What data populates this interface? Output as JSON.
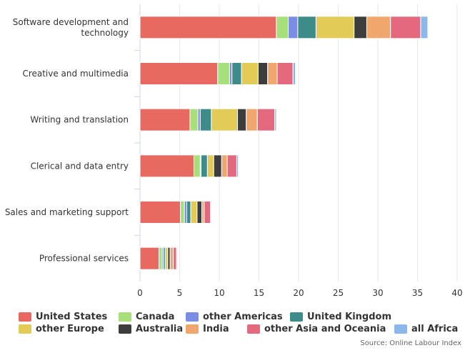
{
  "chart_data": {
    "type": "bar",
    "orientation": "horizontal",
    "stacked": true,
    "categories": [
      [
        "Software development and",
        "technology"
      ],
      [
        "Creative and multimedia"
      ],
      [
        "Writing and translation"
      ],
      [
        "Clerical and data entry"
      ],
      [
        "Sales and marketing support"
      ],
      [
        "Professional services"
      ]
    ],
    "x_ticks": [
      "0",
      "5",
      "10",
      "15",
      "20",
      "25",
      "30",
      "35",
      "40"
    ],
    "xlim": [
      0,
      40
    ],
    "grid": "vertical",
    "legend_position": "bottom",
    "series": [
      {
        "name": "United States",
        "color": "#e8695f",
        "values": [
          17.2,
          9.8,
          6.3,
          6.8,
          5.1,
          2.4
        ]
      },
      {
        "name": "Canada",
        "color": "#a7e07a",
        "values": [
          1.5,
          1.5,
          1.0,
          0.8,
          0.5,
          0.4
        ]
      },
      {
        "name": "other Americas",
        "color": "#7b8ee6",
        "values": [
          1.2,
          0.3,
          0.3,
          0.1,
          0.3,
          0.2
        ]
      },
      {
        "name": "United Kingdom",
        "color": "#3e8c8a",
        "values": [
          2.3,
          1.2,
          1.4,
          0.8,
          0.5,
          0.2
        ]
      },
      {
        "name": "other Europe",
        "color": "#e2cc57",
        "values": [
          4.8,
          2.1,
          3.3,
          0.8,
          0.8,
          0.3
        ]
      },
      {
        "name": "Australia",
        "color": "#3d3d3d",
        "values": [
          1.6,
          1.2,
          1.1,
          1.0,
          0.6,
          0.3
        ]
      },
      {
        "name": "India",
        "color": "#f0a76d",
        "values": [
          3.0,
          1.2,
          1.4,
          0.7,
          0.3,
          0.4
        ]
      },
      {
        "name": "other Asia and Oceania",
        "color": "#e4687e",
        "values": [
          3.8,
          2.0,
          2.2,
          1.2,
          0.8,
          0.4
        ]
      },
      {
        "name": "all Africa",
        "color": "#8ab8ea",
        "values": [
          0.9,
          0.3,
          0.2,
          0.2,
          0.1,
          0.1
        ]
      }
    ]
  },
  "source": "Source: Online Labour Index"
}
